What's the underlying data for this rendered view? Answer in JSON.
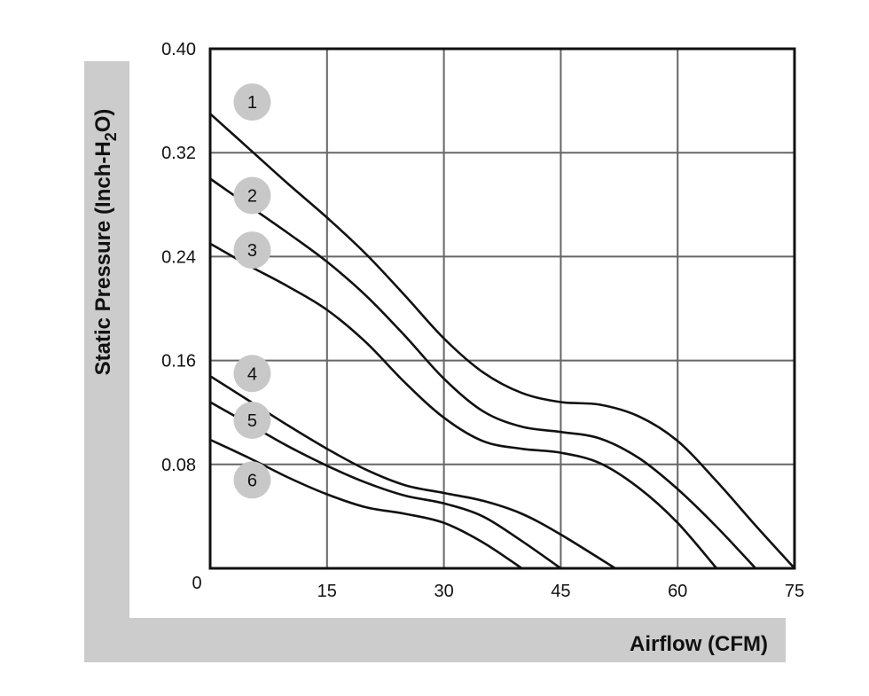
{
  "chart_data": {
    "type": "line",
    "title": "",
    "xlabel": "Airflow (CFM)",
    "ylabel_main": "Static Pressure (Inch-H",
    "ylabel_sub": "2",
    "ylabel_end": "O)",
    "xlim": [
      0,
      75
    ],
    "ylim": [
      0,
      0.4
    ],
    "grid": true,
    "x_ticks": [
      {
        "value": 0,
        "label": "0"
      },
      {
        "value": 15,
        "label": "15"
      },
      {
        "value": 30,
        "label": "30"
      },
      {
        "value": 45,
        "label": "45"
      },
      {
        "value": 60,
        "label": "60"
      },
      {
        "value": 75,
        "label": "75"
      }
    ],
    "y_ticks": [
      {
        "value": 0.4,
        "label": "0.40"
      },
      {
        "value": 0.32,
        "label": "0.32"
      },
      {
        "value": 0.24,
        "label": "0.24"
      },
      {
        "value": 0.16,
        "label": "0.16"
      },
      {
        "value": 0.08,
        "label": "0.08"
      }
    ],
    "series": [
      {
        "name": "1",
        "x": [
          0,
          5,
          10,
          15,
          20,
          25,
          30,
          35,
          40,
          45,
          50,
          55,
          60,
          65,
          70,
          75
        ],
        "y": [
          0.35,
          0.323,
          0.296,
          0.27,
          0.242,
          0.21,
          0.177,
          0.151,
          0.135,
          0.128,
          0.126,
          0.117,
          0.098,
          0.067,
          0.033,
          0.0
        ]
      },
      {
        "name": "2",
        "x": [
          0,
          5,
          10,
          15,
          20,
          25,
          30,
          35,
          40,
          45,
          50,
          55,
          60,
          65,
          70
        ],
        "y": [
          0.3,
          0.279,
          0.258,
          0.236,
          0.21,
          0.179,
          0.146,
          0.121,
          0.109,
          0.105,
          0.1,
          0.085,
          0.061,
          0.032,
          0.0
        ]
      },
      {
        "name": "3",
        "x": [
          0,
          5,
          10,
          15,
          20,
          25,
          30,
          35,
          40,
          45,
          50,
          55,
          60,
          65
        ],
        "y": [
          0.25,
          0.233,
          0.217,
          0.199,
          0.174,
          0.143,
          0.116,
          0.098,
          0.092,
          0.089,
          0.081,
          0.062,
          0.035,
          0.0
        ]
      },
      {
        "name": "4",
        "x": [
          0,
          5,
          10,
          15,
          20,
          25,
          30,
          35,
          40,
          45,
          52
        ],
        "y": [
          0.148,
          0.129,
          0.11,
          0.092,
          0.076,
          0.064,
          0.058,
          0.052,
          0.042,
          0.026,
          0.0
        ]
      },
      {
        "name": "5",
        "x": [
          0,
          5,
          10,
          15,
          20,
          25,
          30,
          35,
          40,
          45
        ],
        "y": [
          0.128,
          0.111,
          0.094,
          0.079,
          0.066,
          0.056,
          0.05,
          0.04,
          0.021,
          0.0
        ]
      },
      {
        "name": "6",
        "x": [
          0,
          5,
          10,
          15,
          20,
          25,
          30,
          35,
          40
        ],
        "y": [
          0.099,
          0.085,
          0.07,
          0.057,
          0.047,
          0.042,
          0.035,
          0.02,
          0.0
        ]
      }
    ],
    "badges": [
      {
        "label": "1",
        "x": 5.4,
        "y": 0.359
      },
      {
        "label": "2",
        "x": 5.4,
        "y": 0.287
      },
      {
        "label": "3",
        "x": 5.4,
        "y": 0.245
      },
      {
        "label": "4",
        "x": 5.4,
        "y": 0.15
      },
      {
        "label": "5",
        "x": 5.4,
        "y": 0.114
      },
      {
        "label": "6",
        "x": 5.4,
        "y": 0.068
      }
    ],
    "colors": {
      "line": "#111111",
      "grid": "#666666",
      "frame": "#111111",
      "badge": "#c8c8c8",
      "axis_band": "#cccccc"
    }
  }
}
